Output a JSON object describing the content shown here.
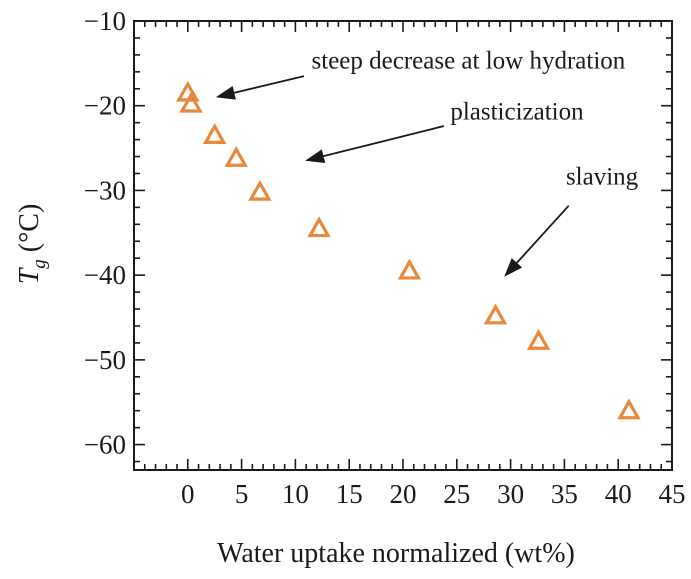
{
  "chart_data": {
    "type": "scatter",
    "title": "",
    "xlabel": "Water uptake normalized (wt%)",
    "ylabel_main": "T",
    "ylabel_sub": "g",
    "ylabel_unit": " (°C)",
    "xlim": [
      -5,
      45
    ],
    "ylim": [
      -63,
      -10
    ],
    "xticks": [
      0,
      5,
      10,
      15,
      20,
      25,
      30,
      35,
      40,
      45
    ],
    "yticks": [
      -10,
      -20,
      -30,
      -40,
      -50,
      -60
    ],
    "xtick_labels": [
      "0",
      "5",
      "10",
      "15",
      "20",
      "25",
      "30",
      "35",
      "40",
      "45"
    ],
    "ytick_labels": [
      "−10",
      "−20",
      "−30",
      "−40",
      "−50",
      "−60"
    ],
    "grid": false,
    "marker_color": "#e8883a",
    "series": [
      {
        "name": "Tg",
        "marker": "open-triangle",
        "points": [
          {
            "x": 0.0,
            "y": -18.5
          },
          {
            "x": 0.3,
            "y": -19.8
          },
          {
            "x": 2.5,
            "y": -23.5
          },
          {
            "x": 4.5,
            "y": -26.2
          },
          {
            "x": 6.7,
            "y": -30.2
          },
          {
            "x": 12.2,
            "y": -34.5
          },
          {
            "x": 20.6,
            "y": -39.5
          },
          {
            "x": 28.6,
            "y": -44.8
          },
          {
            "x": 32.6,
            "y": -47.8
          },
          {
            "x": 41.0,
            "y": -56.0
          }
        ]
      }
    ],
    "annotations": [
      {
        "text": "steep decrease at low hydration",
        "text_at": [
          11.5,
          -15.6
        ],
        "anchor": "start",
        "arrow_from": [
          10.8,
          -16.5
        ],
        "arrow_to": [
          2.6,
          -19.0
        ]
      },
      {
        "text": "plasticization",
        "text_at": [
          24.4,
          -21.6
        ],
        "anchor": "start",
        "arrow_from": [
          23.8,
          -22.4
        ],
        "arrow_to": [
          10.9,
          -26.5
        ]
      },
      {
        "text": "slaving",
        "text_at": [
          38.5,
          -29.3
        ],
        "anchor": "middle",
        "arrow_from": [
          35.4,
          -31.8
        ],
        "arrow_to": [
          29.4,
          -40.2
        ]
      }
    ]
  }
}
